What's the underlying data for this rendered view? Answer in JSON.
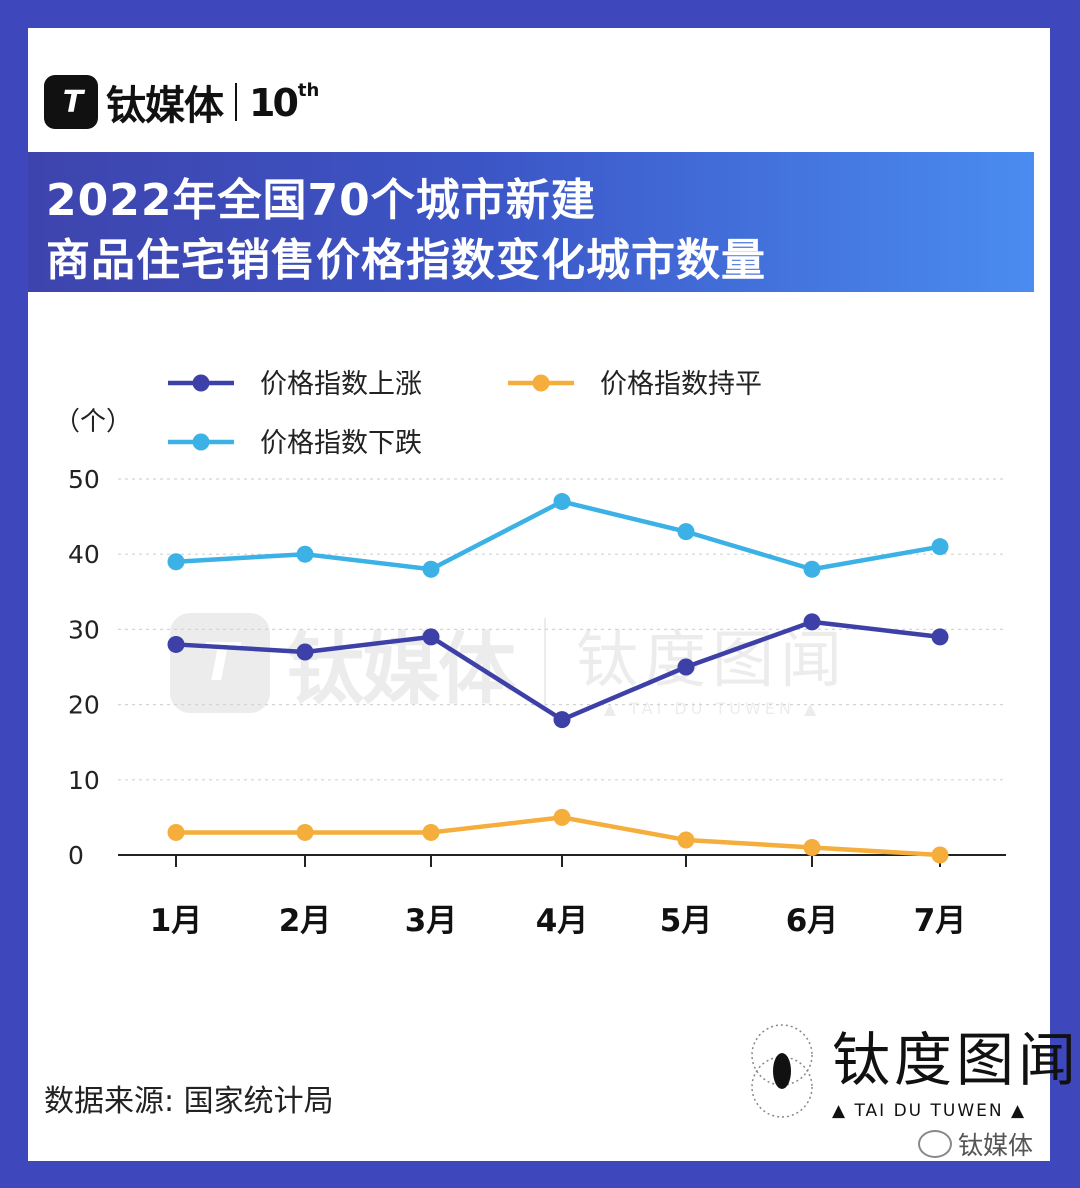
{
  "brand": {
    "logo_glyph": "T",
    "name": "钛媒体",
    "anniversary": "10",
    "anniversary_suffix": "th"
  },
  "title": {
    "line1": "2022年全国70个城市新建",
    "line2": "商品住宅销售价格指数变化城市数量"
  },
  "chart_data": {
    "type": "line",
    "unit_label": "（个）",
    "categories": [
      "1月",
      "2月",
      "3月",
      "4月",
      "5月",
      "6月",
      "7月"
    ],
    "yticks": [
      "0",
      "10",
      "20",
      "30",
      "40",
      "50"
    ],
    "ylim": [
      0,
      50
    ],
    "grid": true,
    "legend_placement": "top-left",
    "series": [
      {
        "name": "价格指数上涨",
        "color": "#3d40a6",
        "values": [
          28,
          27,
          29,
          18,
          25,
          31,
          29
        ]
      },
      {
        "name": "价格指数持平",
        "color": "#f5ad3b",
        "values": [
          3,
          3,
          3,
          5,
          2,
          1,
          0
        ]
      },
      {
        "name": "价格指数下跌",
        "color": "#3bb1e6",
        "values": [
          39,
          40,
          38,
          47,
          43,
          38,
          41
        ]
      }
    ]
  },
  "watermark": {
    "logo_glyph": "T",
    "name": "钛媒体",
    "partner_name": "钛度图闻",
    "partner_sub": "▲ TAI DU TUWEN ▲"
  },
  "source": "数据来源: 国家统计局",
  "footer_brand": {
    "name": "钛度图闻",
    "sub": "▲ TAI DU TUWEN ▲"
  },
  "wechat_label": "钛媒体",
  "colors": {
    "frame": "#3f47bd",
    "title_gradient_start": "#3e44ad",
    "title_gradient_end": "#4a8cf0"
  }
}
